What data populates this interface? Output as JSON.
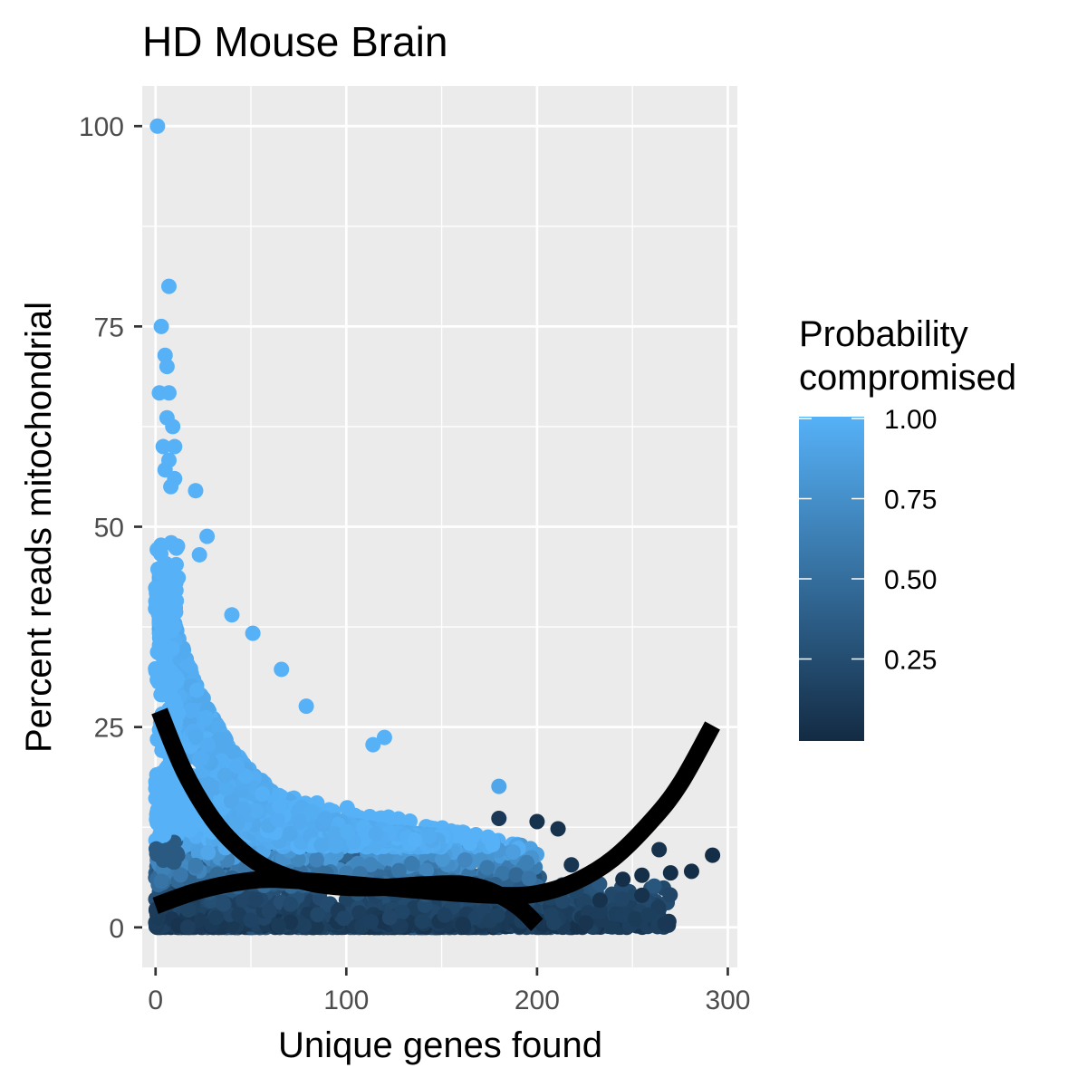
{
  "chart_data": {
    "type": "scatter",
    "title": "HD Mouse Brain",
    "xlabel": "Unique genes found",
    "ylabel": "Percent reads mitochondrial",
    "xlim": [
      -7,
      305
    ],
    "ylim": [
      -5,
      105
    ],
    "x_ticks": [
      0,
      100,
      200,
      300
    ],
    "y_ticks": [
      0,
      25,
      50,
      75,
      100
    ],
    "grid": true,
    "legend": {
      "title": "Probability compromised",
      "title_lines": [
        "Probability",
        "compromised"
      ],
      "position": "right",
      "type": "colorbar",
      "ticks": [
        0.25,
        0.5,
        0.75,
        1.0
      ],
      "tick_labels": [
        "0.25",
        "0.50",
        "0.75",
        "1.00"
      ],
      "low_color": "#132b43",
      "high_color": "#56b1f7"
    },
    "outlier_points": [
      {
        "x": 1,
        "y": 100,
        "p": 1.0
      },
      {
        "x": 7,
        "y": 80,
        "p": 1.0
      },
      {
        "x": 3,
        "y": 75,
        "p": 1.0
      },
      {
        "x": 5,
        "y": 71.4,
        "p": 1.0
      },
      {
        "x": 6,
        "y": 70,
        "p": 1.0
      },
      {
        "x": 2,
        "y": 66.7,
        "p": 1.0
      },
      {
        "x": 7,
        "y": 66.7,
        "p": 1.0
      },
      {
        "x": 6,
        "y": 63.6,
        "p": 1.0
      },
      {
        "x": 9,
        "y": 62.5,
        "p": 1.0
      },
      {
        "x": 4,
        "y": 60,
        "p": 1.0
      },
      {
        "x": 10,
        "y": 60,
        "p": 1.0
      },
      {
        "x": 7,
        "y": 58.3,
        "p": 1.0
      },
      {
        "x": 5,
        "y": 57.1,
        "p": 1.0
      },
      {
        "x": 10,
        "y": 56,
        "p": 1.0
      },
      {
        "x": 8,
        "y": 55,
        "p": 1.0
      },
      {
        "x": 21,
        "y": 54.5,
        "p": 1.0
      },
      {
        "x": 27,
        "y": 48.8,
        "p": 1.0
      },
      {
        "x": 23,
        "y": 46.5,
        "p": 1.0
      },
      {
        "x": 40,
        "y": 39,
        "p": 1.0
      },
      {
        "x": 51,
        "y": 36.7,
        "p": 1.0
      },
      {
        "x": 66,
        "y": 32.2,
        "p": 1.0
      },
      {
        "x": 79,
        "y": 27.6,
        "p": 1.0
      },
      {
        "x": 120,
        "y": 23.7,
        "p": 1.0
      },
      {
        "x": 114,
        "y": 22.8,
        "p": 1.0
      },
      {
        "x": 180,
        "y": 17.6,
        "p": 0.92
      },
      {
        "x": 180,
        "y": 13.6,
        "p": 0.1
      },
      {
        "x": 200,
        "y": 13.2,
        "p": 0.05
      },
      {
        "x": 211,
        "y": 12.3,
        "p": 0.05
      },
      {
        "x": 264,
        "y": 9.7,
        "p": 0.05
      },
      {
        "x": 292,
        "y": 9.0,
        "p": 0.02
      },
      {
        "x": 281,
        "y": 7.0,
        "p": 0.02
      },
      {
        "x": 270,
        "y": 6.8,
        "p": 0.03
      },
      {
        "x": 255,
        "y": 6.5,
        "p": 0.03
      },
      {
        "x": 245,
        "y": 6.0,
        "p": 0.03
      },
      {
        "x": 232,
        "y": 7.3,
        "p": 0.05
      },
      {
        "x": 218,
        "y": 7.8,
        "p": 0.08
      },
      {
        "x": 255,
        "y": 4.0,
        "p": 0.05
      },
      {
        "x": 233,
        "y": 3.4,
        "p": 0.05
      },
      {
        "x": 205,
        "y": 4.5,
        "p": 0.08
      }
    ],
    "fit_lines": [
      {
        "name": "",
        "x": [
          2,
          15,
          30,
          45,
          60,
          80,
          100,
          120,
          140,
          160,
          175,
          190,
          200
        ],
        "y": [
          27,
          19.5,
          13.5,
          9.6,
          7.2,
          5.6,
          5.0,
          5.0,
          5.3,
          5.4,
          4.6,
          2.6,
          0.3
        ]
      },
      {
        "name": "",
        "x": [
          0,
          20,
          40,
          60,
          90,
          120,
          150,
          180,
          200,
          220,
          240,
          260,
          275,
          292
        ],
        "y": [
          2.7,
          4.4,
          5.5,
          6.0,
          5.6,
          5.0,
          4.4,
          4.0,
          4.2,
          5.7,
          8.6,
          13.3,
          17.9,
          25.2
        ]
      }
    ]
  }
}
